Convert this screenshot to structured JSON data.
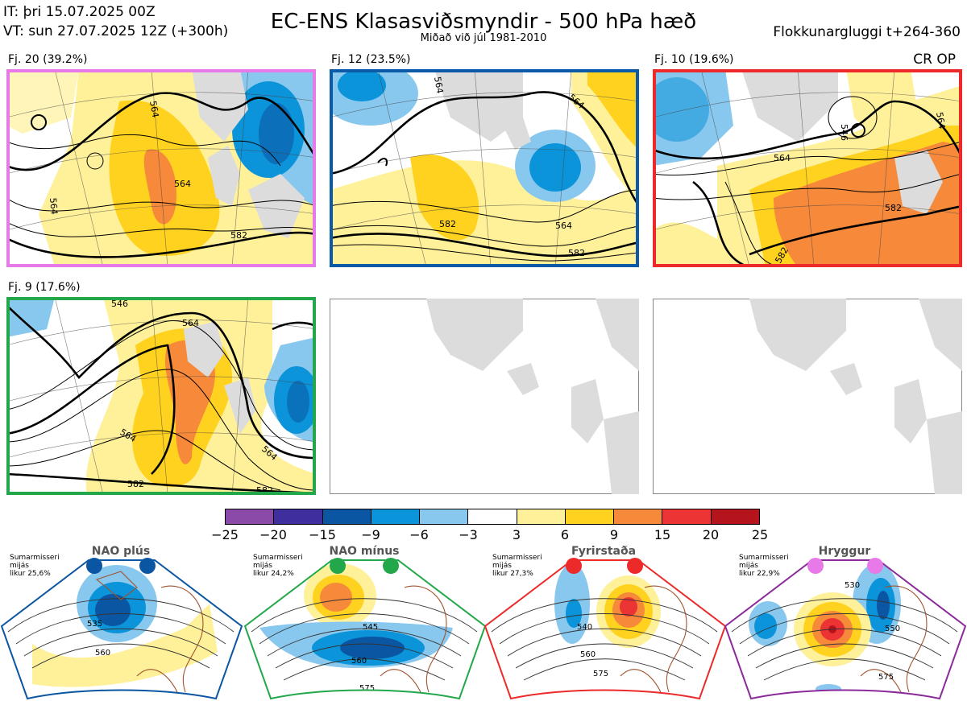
{
  "header": {
    "it": "IT: þri 15.07.2025 00Z",
    "vt": "VT: sun 27.07.2025 12Z  (+300h)",
    "title": "EC-ENS Klasasviðsmyndir - 500 hPa hæð",
    "subtitle": "Miðað við júl 1981-2010",
    "right": "Flokkunargluggi t+264-360",
    "badge": "CR OP"
  },
  "panels": [
    {
      "label": "Fj. 20 (39.2%)",
      "border": "#e879e8",
      "contours": [
        "564",
        "564",
        "564",
        "582"
      ]
    },
    {
      "label": "Fj. 12 (23.5%)",
      "border": "#0b5aa8",
      "contours": [
        "564",
        "564",
        "564",
        "582",
        "582"
      ]
    },
    {
      "label": "Fj. 10 (19.6%)",
      "border": "#ec2a2a",
      "contours": [
        "546",
        "564",
        "564",
        "582",
        "582"
      ]
    },
    {
      "label": "Fj. 9 (17.6%)",
      "border": "#22a84a",
      "contours": [
        "546",
        "564",
        "564",
        "564",
        "582",
        "582"
      ]
    }
  ],
  "legend": {
    "ticks": [
      "−25",
      "−20",
      "−15",
      "−9",
      "−6",
      "−3",
      "3",
      "6",
      "9",
      "15",
      "20",
      "25"
    ],
    "colors": [
      "#8b4aa8",
      "#3f2f9e",
      "#0b56a3",
      "#0b94d9",
      "#89c8ee",
      "#ffffff",
      "#fff19a",
      "#ffd21f",
      "#f6893a",
      "#ec3434",
      "#b5141c"
    ]
  },
  "regimes": [
    {
      "title": "NAO plús",
      "note": [
        "Sumarmisseri",
        "mijás",
        "likur 25,6%"
      ],
      "border": "#0b56a3",
      "dot": "#0b56a3",
      "contours": [
        "535",
        "560"
      ]
    },
    {
      "title": "NAO mínus",
      "note": [
        "Sumarmisseri",
        "mijás",
        "likur 24,2%"
      ],
      "border": "#22a84a",
      "dot": "#22a84a",
      "contours": [
        "545",
        "560",
        "575"
      ]
    },
    {
      "title": "Fyrirstaða",
      "note": [
        "Sumarmisseri",
        "mijás",
        "likur 27,3%"
      ],
      "border": "#ec2a2a",
      "dot": "#ec2a2a",
      "contours": [
        "540",
        "560",
        "575"
      ]
    },
    {
      "title": "Hryggur",
      "note": [
        "Sumarmisseri",
        "mijás",
        "likur 22,9%"
      ],
      "border": "#8b2a9a",
      "dot": "#e879e8",
      "contours": [
        "530",
        "550",
        "575"
      ]
    }
  ]
}
